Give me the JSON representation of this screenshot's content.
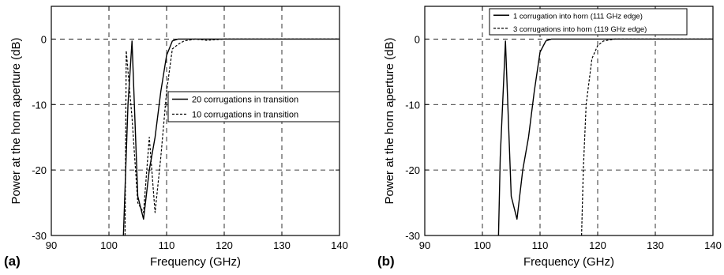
{
  "chart_data": [
    {
      "type": "line",
      "panel_label": "(a)",
      "xlabel": "Frequency (GHz)",
      "ylabel": "Power at the horn aperture (dB)",
      "xlim": [
        90,
        140
      ],
      "ylim": [
        -30,
        5
      ],
      "xticks": [
        90,
        100,
        110,
        120,
        130,
        140
      ],
      "yticks": [
        0,
        -10,
        -20,
        -30
      ],
      "grid": true,
      "legend_placement": "center-right",
      "series": [
        {
          "name": "20 corrugations in transition",
          "style": "solid",
          "points": [
            [
              102.5,
              -30
            ],
            [
              103.3,
              -10
            ],
            [
              104,
              -0.3
            ],
            [
              105,
              -24
            ],
            [
              106,
              -27.5
            ],
            [
              107,
              -20
            ],
            [
              108,
              -15
            ],
            [
              109,
              -8
            ],
            [
              110,
              -2.5
            ],
            [
              111,
              -0.3
            ],
            [
              112,
              0
            ],
            [
              120,
              0
            ],
            [
              140,
              0
            ]
          ]
        },
        {
          "name": "10 corrugations in transition",
          "style": "dashed",
          "points": [
            [
              102.8,
              -30
            ],
            [
              103,
              -1.8
            ],
            [
              104,
              -12
            ],
            [
              105,
              -25
            ],
            [
              106,
              -26.5
            ],
            [
              107,
              -15
            ],
            [
              108,
              -26.5
            ],
            [
              109,
              -18
            ],
            [
              110,
              -8
            ],
            [
              111,
              -1.5
            ],
            [
              112,
              -0.8
            ],
            [
              113,
              -0.3
            ],
            [
              115,
              0
            ],
            [
              117,
              -0.2
            ],
            [
              120,
              0
            ],
            [
              140,
              0
            ]
          ]
        }
      ]
    },
    {
      "type": "line",
      "panel_label": "(b)",
      "xlabel": "Frequency (GHz)",
      "ylabel": "Power at the horn aperture (dB)",
      "xlim": [
        90,
        140
      ],
      "ylim": [
        -30,
        5
      ],
      "xticks": [
        90,
        100,
        110,
        120,
        130,
        140
      ],
      "yticks": [
        0,
        -10,
        -20,
        -30
      ],
      "grid": true,
      "legend_placement": "top-left",
      "series": [
        {
          "name": "1 corrugation into horn (111 GHz edge)",
          "style": "solid",
          "points": [
            [
              102.8,
              -30
            ],
            [
              103.1,
              -18
            ],
            [
              104,
              -0.3
            ],
            [
              105,
              -24
            ],
            [
              106,
              -27.5
            ],
            [
              107,
              -20
            ],
            [
              108,
              -15
            ],
            [
              109,
              -8
            ],
            [
              110,
              -2
            ],
            [
              111,
              -0.3
            ],
            [
              112,
              0
            ],
            [
              140,
              0
            ]
          ]
        },
        {
          "name": "3 corrugations into horn (119 GHz edge)",
          "style": "dashed",
          "points": [
            [
              117.2,
              -30
            ],
            [
              117.5,
              -20
            ],
            [
              118,
              -10
            ],
            [
              119,
              -3
            ],
            [
              120,
              -1
            ],
            [
              121,
              -0.3
            ],
            [
              123,
              0
            ],
            [
              140,
              0
            ]
          ]
        }
      ]
    }
  ]
}
